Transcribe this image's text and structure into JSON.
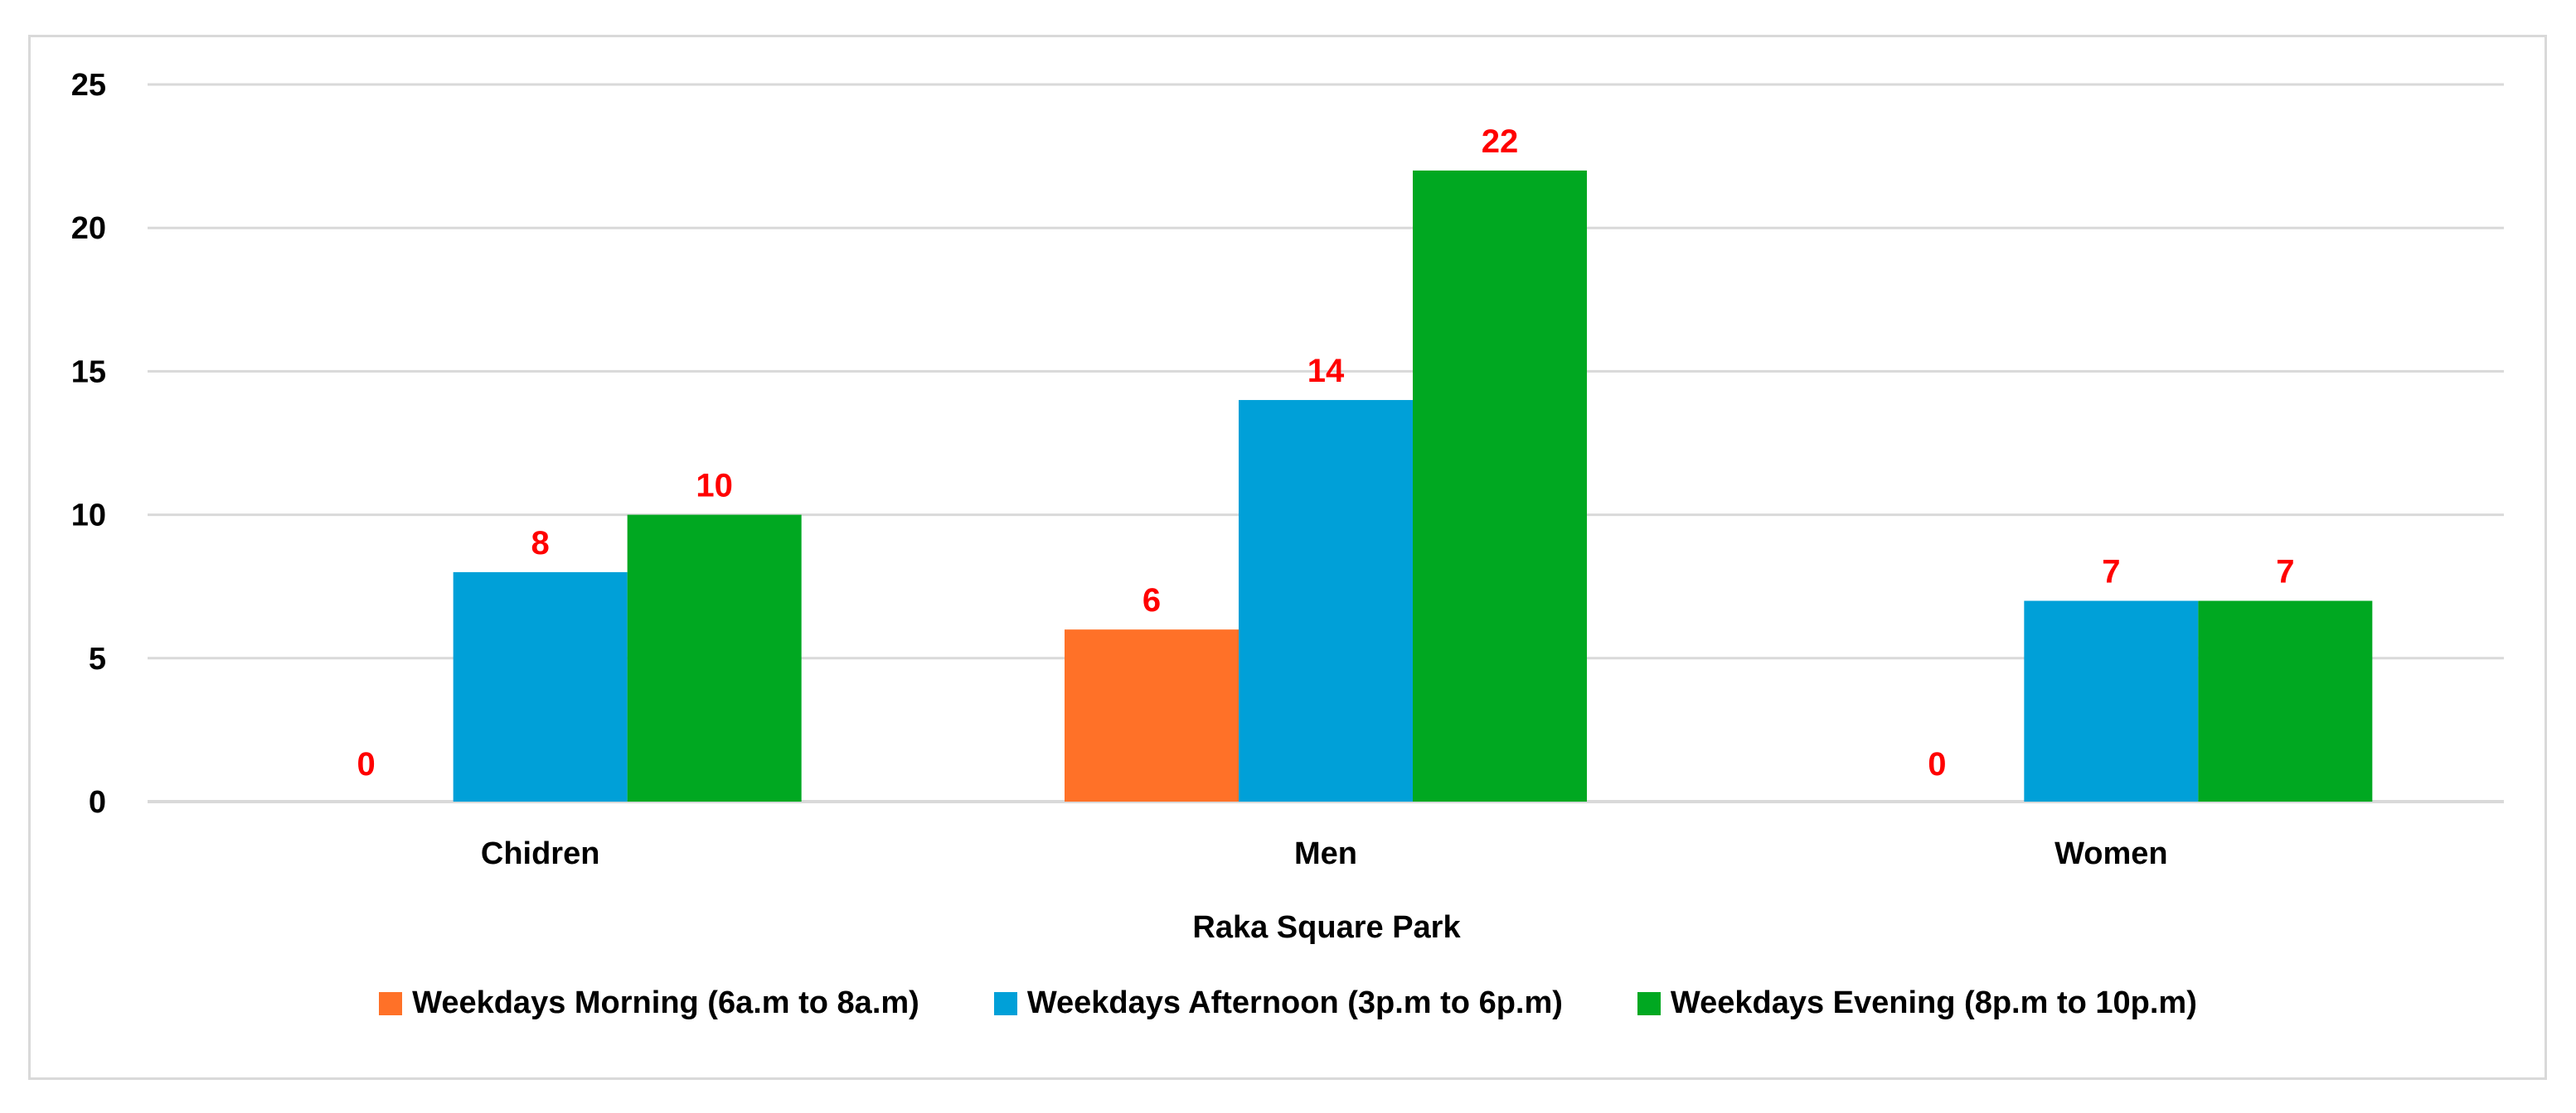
{
  "chart_data": {
    "type": "bar",
    "categories": [
      "Chidren",
      "Men",
      "Women"
    ],
    "series": [
      {
        "name": "Weekdays Morning (6a.m to 8a.m)",
        "values": [
          0,
          6,
          0
        ],
        "color": "#ff7128"
      },
      {
        "name": "Weekdays Afternoon (3p.m to 6p.m)",
        "values": [
          8,
          14,
          7
        ],
        "color": "#00a0d8"
      },
      {
        "name": "Weekdays Evening (8p.m to 10p.m)",
        "values": [
          10,
          22,
          7
        ],
        "color": "#00a821"
      }
    ],
    "xlabel": "Raka Square Park",
    "ylabel": "",
    "ylim": [
      0,
      25
    ],
    "yticks": [
      "0",
      "5",
      "10",
      "15",
      "20",
      "25"
    ],
    "data_labels": true,
    "data_label_color": "#ff0000",
    "grid": true,
    "gridline_color": "#d9d9d9",
    "legend_position": "bottom"
  }
}
